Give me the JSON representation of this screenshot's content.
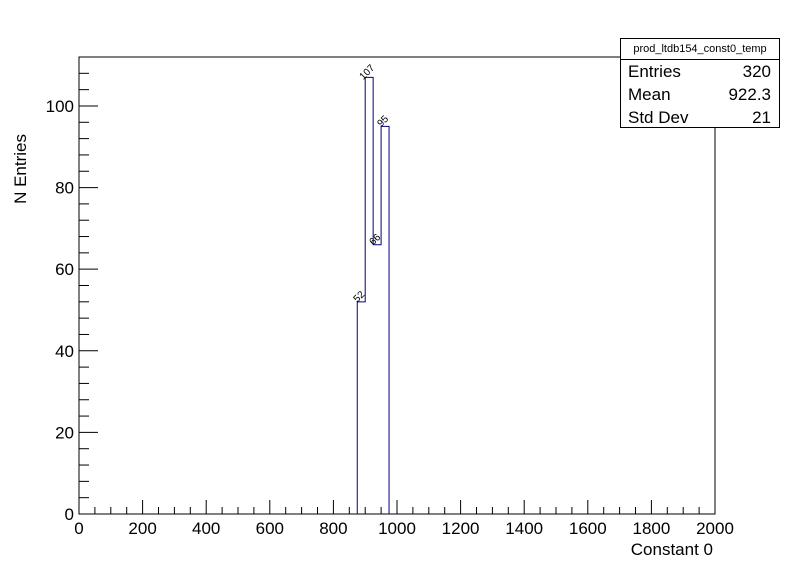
{
  "chart_data": {
    "type": "bar",
    "histogram": true,
    "bin_width": 25,
    "bins": [
      {
        "x": 875,
        "value": 52
      },
      {
        "x": 900,
        "value": 107
      },
      {
        "x": 925,
        "value": 66
      },
      {
        "x": 950,
        "value": 95
      }
    ],
    "bar_labels": [
      "52",
      "107",
      "66",
      "95"
    ],
    "xlabel": "Constant 0",
    "ylabel": "N Entries",
    "xlim": [
      0,
      2000
    ],
    "ylim": [
      0,
      112
    ],
    "x_ticks": [
      "0",
      "200",
      "400",
      "600",
      "800",
      "1000",
      "1200",
      "1400",
      "1600",
      "1800",
      "2000"
    ],
    "y_ticks": [
      "0",
      "20",
      "40",
      "60",
      "80",
      "100"
    ],
    "grid": false,
    "line_color": "#000080"
  },
  "stats": {
    "title": "prod_ltdb154_const0_temp",
    "rows": [
      {
        "label": "Entries",
        "value": "320"
      },
      {
        "label": "Mean",
        "value": "922.3"
      },
      {
        "label": "Std Dev",
        "value": "21"
      }
    ]
  }
}
